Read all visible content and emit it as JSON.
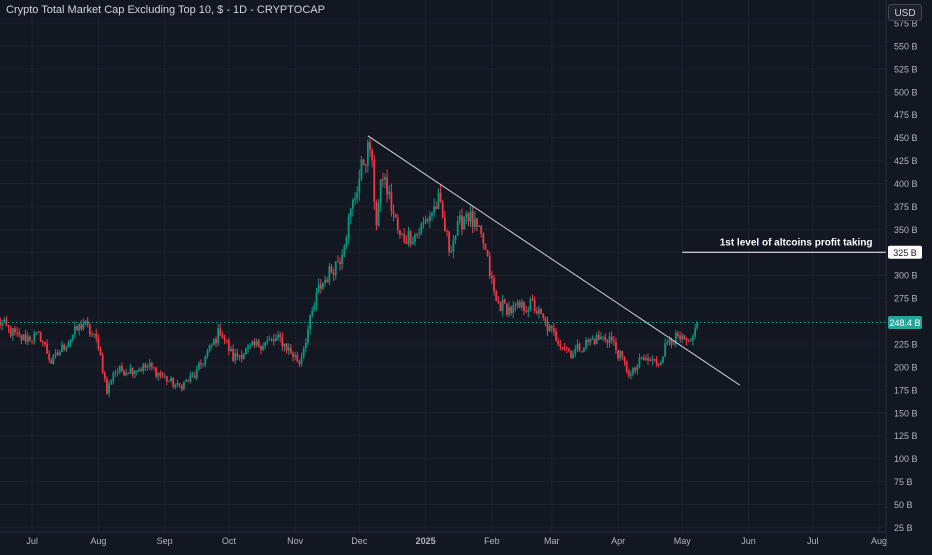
{
  "header": {
    "title": "Crypto Total Market Cap Excluding Top 10, $ - 1D - CRYPTOCAP",
    "currency": "USD"
  },
  "chart_data": {
    "type": "candlestick",
    "title": "Crypto Total Market Cap Excluding Top 10, $ - 1D - CRYPTOCAP",
    "y_unit": "B",
    "ylim": [
      22,
      580
    ],
    "y_ticks": [
      25,
      50,
      75,
      100,
      125,
      150,
      175,
      200,
      225,
      250,
      275,
      300,
      325,
      350,
      375,
      400,
      425,
      450,
      475,
      500,
      525,
      550,
      575
    ],
    "x_ticks": [
      {
        "label": "Jul",
        "date": "2024-07-01"
      },
      {
        "label": "Aug",
        "date": "2024-08-01"
      },
      {
        "label": "Sep",
        "date": "2024-09-01"
      },
      {
        "label": "Oct",
        "date": "2024-10-01"
      },
      {
        "label": "Nov",
        "date": "2024-11-01"
      },
      {
        "label": "Dec",
        "date": "2024-12-01"
      },
      {
        "label": "2025",
        "date": "2025-01-01"
      },
      {
        "label": "Feb",
        "date": "2025-02-01"
      },
      {
        "label": "Mar",
        "date": "2025-03-01"
      },
      {
        "label": "Apr",
        "date": "2025-04-01"
      },
      {
        "label": "May",
        "date": "2025-05-01"
      },
      {
        "label": "Jun",
        "date": "2025-06-01"
      },
      {
        "label": "Jul",
        "date": "2025-07-01"
      },
      {
        "label": "Aug",
        "date": "2025-08-01"
      }
    ],
    "close_path": [
      {
        "date": "2024-06-15",
        "value": 250
      },
      {
        "date": "2024-06-25",
        "value": 231
      },
      {
        "date": "2024-07-05",
        "value": 233
      },
      {
        "date": "2024-07-10",
        "value": 205
      },
      {
        "date": "2024-07-20",
        "value": 235
      },
      {
        "date": "2024-07-25",
        "value": 248
      },
      {
        "date": "2024-08-01",
        "value": 225
      },
      {
        "date": "2024-08-05",
        "value": 172
      },
      {
        "date": "2024-08-08",
        "value": 195
      },
      {
        "date": "2024-08-25",
        "value": 200
      },
      {
        "date": "2024-09-07",
        "value": 178
      },
      {
        "date": "2024-09-15",
        "value": 190
      },
      {
        "date": "2024-09-27",
        "value": 240
      },
      {
        "date": "2024-10-03",
        "value": 210
      },
      {
        "date": "2024-10-15",
        "value": 225
      },
      {
        "date": "2024-10-25",
        "value": 230
      },
      {
        "date": "2024-11-03",
        "value": 205
      },
      {
        "date": "2024-11-12",
        "value": 285
      },
      {
        "date": "2024-11-22",
        "value": 320
      },
      {
        "date": "2024-12-03",
        "value": 425
      },
      {
        "date": "2024-12-06",
        "value": 440
      },
      {
        "date": "2024-12-09",
        "value": 360
      },
      {
        "date": "2024-12-12",
        "value": 410
      },
      {
        "date": "2024-12-20",
        "value": 340
      },
      {
        "date": "2024-12-28",
        "value": 345
      },
      {
        "date": "2025-01-07",
        "value": 380
      },
      {
        "date": "2025-01-12",
        "value": 330
      },
      {
        "date": "2025-01-20",
        "value": 370
      },
      {
        "date": "2025-01-28",
        "value": 335
      },
      {
        "date": "2025-02-03",
        "value": 270
      },
      {
        "date": "2025-02-10",
        "value": 262
      },
      {
        "date": "2025-02-20",
        "value": 268
      },
      {
        "date": "2025-02-28",
        "value": 240
      },
      {
        "date": "2025-03-10",
        "value": 215
      },
      {
        "date": "2025-03-20",
        "value": 230
      },
      {
        "date": "2025-03-28",
        "value": 232
      },
      {
        "date": "2025-04-07",
        "value": 190
      },
      {
        "date": "2025-04-12",
        "value": 208
      },
      {
        "date": "2025-04-20",
        "value": 205
      },
      {
        "date": "2025-04-25",
        "value": 232
      },
      {
        "date": "2025-05-01",
        "value": 228
      },
      {
        "date": "2025-05-05",
        "value": 222
      },
      {
        "date": "2025-05-08",
        "value": 248.4
      }
    ],
    "up_color": "#089981",
    "down_color": "#f23645",
    "current_price": {
      "value": 248.4,
      "label": "248.4 B",
      "color": "#26a69a"
    },
    "trendline": {
      "start": {
        "date": "2024-12-05",
        "value": 452
      },
      "end": {
        "date": "2025-05-28",
        "value": 180
      },
      "color": "#d1d4dc"
    },
    "annotation": {
      "text": "1st level of altcoins profit taking",
      "value": 325,
      "label": "325 B",
      "from_date": "2025-05-01"
    },
    "grid": true,
    "background": "#131722"
  }
}
